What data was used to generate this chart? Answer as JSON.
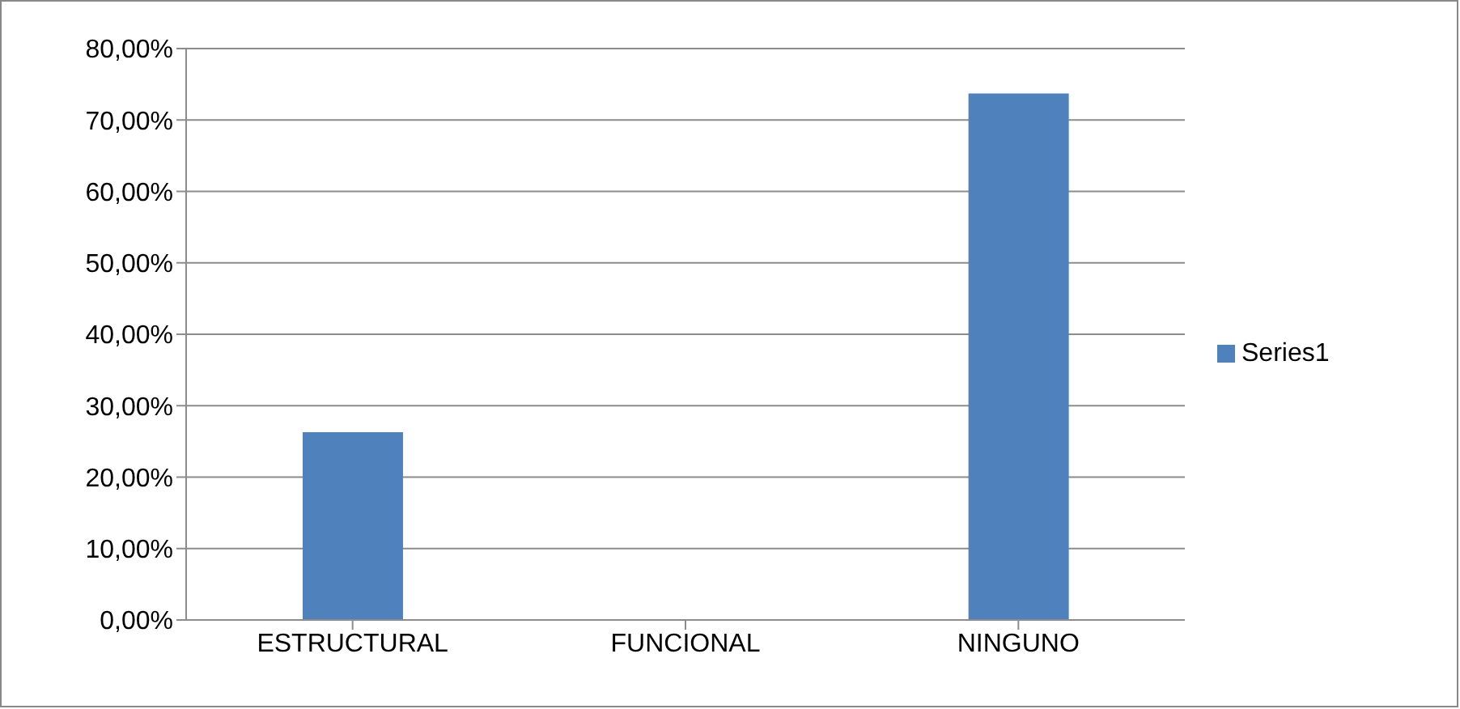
{
  "chart_data": {
    "type": "bar",
    "categories": [
      "ESTRUCTURAL",
      "FUNCIONAL",
      "NINGUNO"
    ],
    "series": [
      {
        "name": "Series1",
        "color": "#4f81bd",
        "values": [
          26.3,
          0,
          73.7
        ]
      }
    ],
    "ylim": [
      0,
      80
    ],
    "yticks": [
      {
        "value": 0,
        "label": "0,00%"
      },
      {
        "value": 10,
        "label": "10,00%"
      },
      {
        "value": 20,
        "label": "20,00%"
      },
      {
        "value": 30,
        "label": "30,00%"
      },
      {
        "value": 40,
        "label": "40,00%"
      },
      {
        "value": 50,
        "label": "50,00%"
      },
      {
        "value": 60,
        "label": "60,00%"
      },
      {
        "value": 70,
        "label": "70,00%"
      },
      {
        "value": 80,
        "label": "80,00%"
      }
    ],
    "grid": "y",
    "legend": "right"
  }
}
